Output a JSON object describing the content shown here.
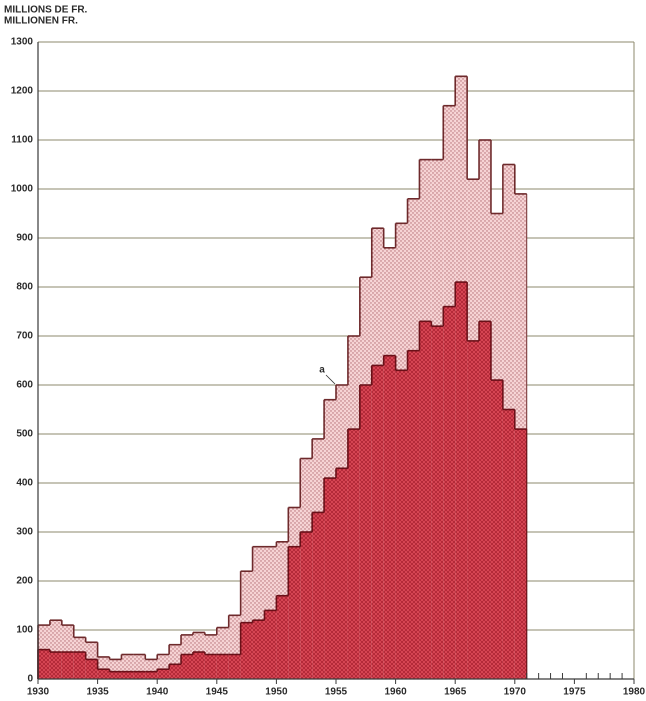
{
  "chart_data": {
    "type": "step-area",
    "axis_label_lines": [
      "MILLIONS DE FR.",
      "MILLIONEN FR."
    ],
    "x": [
      1930,
      1931,
      1932,
      1933,
      1934,
      1935,
      1936,
      1937,
      1938,
      1939,
      1940,
      1941,
      1942,
      1943,
      1944,
      1945,
      1946,
      1947,
      1948,
      1949,
      1950,
      1951,
      1952,
      1953,
      1954,
      1955,
      1956,
      1957,
      1958,
      1959,
      1960,
      1961,
      1962,
      1963,
      1964,
      1965,
      1966,
      1967,
      1968,
      1969,
      1970
    ],
    "series": [
      {
        "color": "#f3c4c6",
        "values": [
          110,
          120,
          110,
          85,
          75,
          45,
          40,
          50,
          50,
          40,
          50,
          70,
          90,
          95,
          90,
          105,
          130,
          220,
          270,
          270,
          280,
          350,
          450,
          490,
          570,
          600,
          700,
          820,
          920,
          880,
          930,
          980,
          1060,
          1060,
          1170,
          1230,
          1020,
          1100,
          950,
          1050,
          990
        ]
      },
      {
        "color": "#d8404f",
        "values": [
          60,
          55,
          55,
          55,
          40,
          20,
          15,
          15,
          15,
          15,
          20,
          30,
          50,
          55,
          50,
          50,
          50,
          115,
          120,
          140,
          170,
          270,
          300,
          340,
          410,
          430,
          510,
          600,
          640,
          660,
          630,
          670,
          730,
          720,
          760,
          810,
          690,
          730,
          610,
          550,
          510
        ]
      }
    ],
    "annotations": [
      {
        "text": "a"
      }
    ],
    "xlim": [
      1930,
      1980
    ],
    "xticks": [
      1930,
      1935,
      1940,
      1945,
      1950,
      1955,
      1960,
      1965,
      1970,
      1975,
      1980
    ],
    "xminorticks": [
      1971,
      1972,
      1973,
      1974,
      1976,
      1977,
      1978,
      1979
    ],
    "ylim": [
      0,
      1300
    ],
    "yticks": [
      0,
      100,
      200,
      300,
      400,
      500,
      600,
      700,
      800,
      900,
      1000,
      1100,
      1200,
      1300
    ],
    "grid": true
  }
}
